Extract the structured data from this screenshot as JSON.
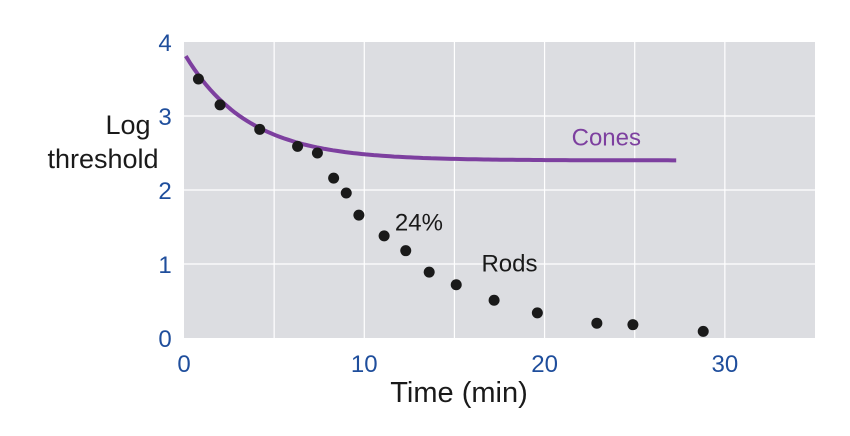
{
  "chart_data": {
    "type": "scatter",
    "title": "",
    "xlabel": "Time (min)",
    "ylabel": [
      "Log",
      "threshold"
    ],
    "xlim": [
      0,
      35
    ],
    "ylim": [
      0,
      4
    ],
    "xticks": [
      0,
      10,
      20,
      30
    ],
    "yticks": [
      0,
      1,
      2,
      3,
      4
    ],
    "grid": true,
    "colors": {
      "background": "#dcdde1",
      "grid": "#ffffff",
      "tick": "#1f4e9c",
      "cones": "#7d3f9f",
      "points": "#1a1a1a"
    },
    "series": [
      {
        "name": "Rods",
        "type": "scatter",
        "x": [
          0.8,
          2.0,
          4.2,
          6.3,
          7.4,
          8.3,
          9.0,
          9.7,
          11.1,
          12.3,
          13.6,
          15.1,
          17.2,
          19.6,
          22.9,
          24.9,
          28.8
        ],
        "y": [
          3.5,
          3.15,
          2.82,
          2.59,
          2.5,
          2.16,
          1.96,
          1.66,
          1.38,
          1.18,
          0.89,
          0.72,
          0.51,
          0.34,
          0.2,
          0.18,
          0.09
        ]
      },
      {
        "name": "Cones",
        "type": "line",
        "model": "2.4 + 1.45*exp(-x/3.5)",
        "x_range": [
          0.1,
          27.3
        ]
      }
    ],
    "annotations": [
      {
        "text": "Cones",
        "x": 21.5,
        "y": 2.6
      },
      {
        "text": "Rods",
        "x": 16.5,
        "y": 0.9
      },
      {
        "text": "24%",
        "x": 11.7,
        "y": 1.45
      }
    ]
  }
}
